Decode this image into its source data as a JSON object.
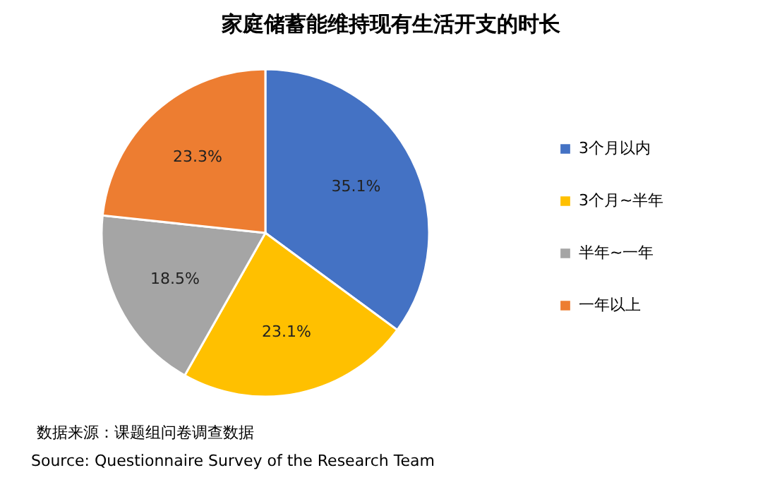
{
  "chart_data": {
    "type": "pie",
    "title": "家庭储蓄能维持现有生活开支的时长",
    "categories": [
      "3个月以内",
      "3个月~半年",
      "半年~一年",
      "一年以上"
    ],
    "values": [
      35.1,
      23.1,
      18.5,
      23.3
    ],
    "colors": [
      "#4472c4",
      "#ffc000",
      "#a5a5a5",
      "#ed7d31"
    ],
    "value_labels": [
      "35.1%",
      "23.1%",
      "18.5%",
      "23.3%"
    ],
    "legend": "right",
    "annotations": [
      "数据来源：课题组问卷调查数据",
      "Source: Questionnaire Survey of the Research Team"
    ]
  }
}
